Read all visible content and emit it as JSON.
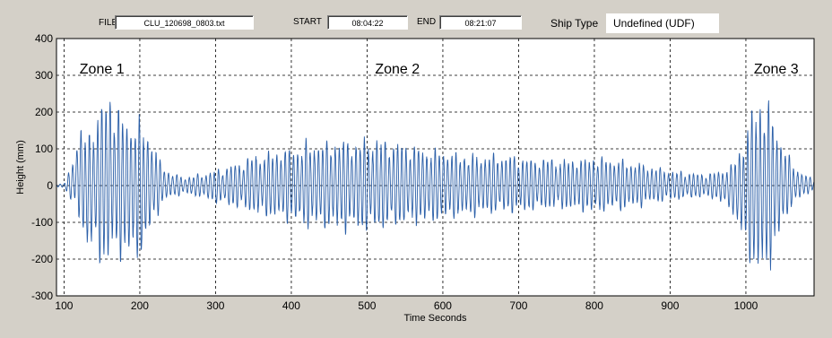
{
  "toolbar": {
    "file_label": "FILE",
    "file_value": "CLU_120698_0803.txt",
    "start_label": "START",
    "start_value": "08:04:22",
    "end_label": "END",
    "end_value": "08:21:07",
    "ship_type_label": "Ship Type",
    "ship_type_value": "Undefined (UDF)"
  },
  "colors": {
    "background": "#d4d0c8",
    "plot_background": "#ffffff",
    "series_line": "#2b5fa8",
    "grid": "#000000"
  },
  "chart_data": {
    "type": "line",
    "title": "",
    "xlabel": "Time Seconds",
    "ylabel": "Height (mm)",
    "xlim": [
      90,
      1090
    ],
    "ylim": [
      -300,
      400
    ],
    "xticks": [
      100,
      200,
      300,
      400,
      500,
      600,
      700,
      800,
      900,
      1000
    ],
    "yticks": [
      400,
      300,
      200,
      100,
      0,
      -100,
      -200,
      -300
    ],
    "grid": true,
    "annotations": [
      {
        "text": "Zone 1",
        "x": 150,
        "y": 320
      },
      {
        "text": "Zone 2",
        "x": 540,
        "y": 320
      },
      {
        "text": "Zone 3",
        "x": 1040,
        "y": 320
      }
    ],
    "envelope": {
      "x": [
        90,
        100,
        110,
        120,
        130,
        140,
        150,
        160,
        170,
        180,
        190,
        200,
        210,
        220,
        230,
        240,
        250,
        260,
        280,
        300,
        320,
        340,
        360,
        380,
        400,
        420,
        440,
        460,
        480,
        500,
        520,
        540,
        560,
        580,
        600,
        620,
        640,
        660,
        680,
        700,
        720,
        740,
        760,
        780,
        800,
        820,
        840,
        860,
        880,
        900,
        920,
        940,
        960,
        980,
        990,
        1000,
        1010,
        1020,
        1030,
        1040,
        1050,
        1060,
        1070,
        1080,
        1090
      ],
      "max": [
        5,
        5,
        60,
        175,
        140,
        200,
        240,
        270,
        230,
        210,
        200,
        190,
        170,
        110,
        60,
        40,
        30,
        25,
        35,
        45,
        60,
        80,
        95,
        105,
        115,
        125,
        130,
        135,
        135,
        135,
        135,
        125,
        120,
        110,
        105,
        95,
        90,
        90,
        90,
        85,
        80,
        80,
        75,
        80,
        85,
        80,
        75,
        65,
        55,
        45,
        40,
        35,
        40,
        60,
        100,
        160,
        230,
        255,
        240,
        180,
        120,
        70,
        45,
        30,
        20
      ],
      "min": [
        -5,
        -5,
        -50,
        -110,
        -170,
        -200,
        -235,
        -220,
        -210,
        -215,
        -220,
        -210,
        -170,
        -100,
        -55,
        -35,
        -30,
        -25,
        -35,
        -50,
        -60,
        -75,
        -90,
        -100,
        -110,
        -120,
        -125,
        -130,
        -130,
        -135,
        -130,
        -120,
        -115,
        -110,
        -100,
        -95,
        -90,
        -85,
        -80,
        -80,
        -75,
        -70,
        -70,
        -75,
        -80,
        -75,
        -70,
        -60,
        -50,
        -45,
        -40,
        -35,
        -40,
        -70,
        -120,
        -190,
        -250,
        -275,
        -240,
        -180,
        -110,
        -65,
        -40,
        -25,
        -15
      ],
      "wave_period_seconds": 5.5
    }
  }
}
